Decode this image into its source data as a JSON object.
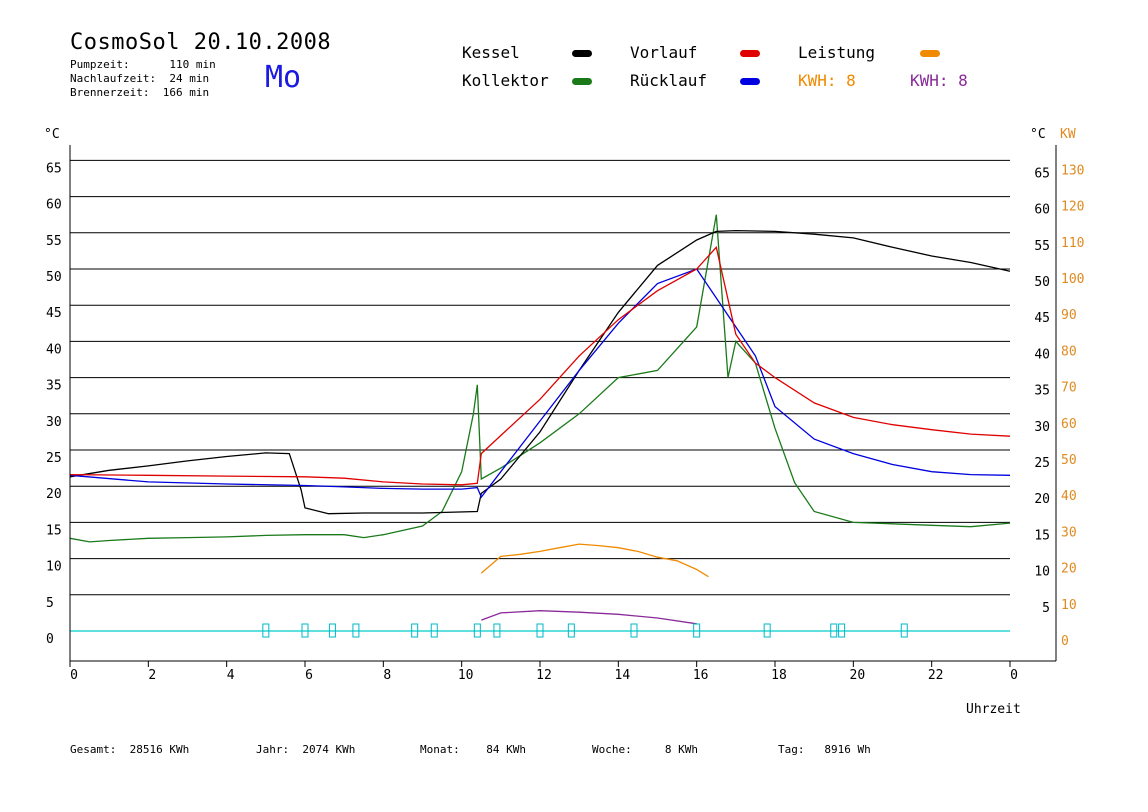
{
  "header": {
    "title": "CosmoSol 20.10.2008",
    "pumpzeit": "Pumpzeit:      110 min",
    "nachlaufzeit": "Nachlaufzeit:  24 min",
    "brennerzeit": "Brennerzeit:  166 min",
    "day": "Mo"
  },
  "legend": {
    "kessel": {
      "label": "Kessel",
      "color": "#000000"
    },
    "kollektor": {
      "label": "Kollektor",
      "color": "#1a7a1a"
    },
    "vorlauf": {
      "label": "Vorlauf",
      "color": "#e00000"
    },
    "ruecklauf": {
      "label": "Rücklauf",
      "color": "#0000e0"
    },
    "leistung": {
      "label": "Leistung",
      "color": "#f08a00"
    },
    "kwh1": "KWH: 8",
    "kwh2": "KWH: 8",
    "kwh1_color": "#f08a00",
    "kwh2_color": "#8a2a9a"
  },
  "footer": {
    "gesamt": "Gesamt:  28516 KWh",
    "jahr": "Jahr:  2074 KWh",
    "monat": "Monat:    84 KWh",
    "woche": "Woche:     8 KWh",
    "tag": "Tag:   8916 Wh"
  },
  "chart_data": {
    "type": "line",
    "title": "CosmoSol 20.10.2008",
    "xlabel": "Uhrzeit",
    "ylabel_left": "°C",
    "ylabel_right": "°C",
    "ylabel_right2": "KW",
    "xlim": [
      0,
      24
    ],
    "ylim": [
      0,
      65
    ],
    "x_ticks": [
      "0",
      "2",
      "4",
      "6",
      "8",
      "10",
      "12",
      "14",
      "16",
      "18",
      "20",
      "22",
      "0"
    ],
    "y_ticks_left": [
      "0",
      "5",
      "10",
      "15",
      "20",
      "25",
      "30",
      "35",
      "40",
      "45",
      "50",
      "55",
      "60",
      "65"
    ],
    "y_ticks_right": [
      "5",
      "10",
      "15",
      "20",
      "25",
      "30",
      "35",
      "40",
      "45",
      "50",
      "55",
      "60",
      "65"
    ],
    "y_ticks_kw": [
      "0",
      "10",
      "20",
      "30",
      "40",
      "50",
      "60",
      "70",
      "80",
      "90",
      "100",
      "110",
      "120",
      "130"
    ],
    "grid": true,
    "series": [
      {
        "name": "Kessel",
        "color": "#000000",
        "x": [
          0,
          1,
          2,
          3,
          4,
          5,
          5.6,
          5.9,
          6.0,
          6.6,
          7.5,
          9,
          10.4,
          10.5,
          11,
          12,
          13,
          14,
          15,
          16,
          16.5,
          17,
          18,
          19,
          20,
          21,
          22,
          23,
          24
        ],
        "y": [
          21.3,
          22.2,
          22.8,
          23.5,
          24.1,
          24.6,
          24.5,
          19.5,
          17,
          16.2,
          16.3,
          16.3,
          16.5,
          19,
          21,
          27.5,
          36,
          44,
          50.5,
          54,
          55.2,
          55.3,
          55.2,
          54.8,
          54.3,
          53,
          51.8,
          50.9,
          49.7
        ]
      },
      {
        "name": "Vorlauf",
        "color": "#e00000",
        "x": [
          0,
          2,
          4,
          6,
          7,
          8,
          9,
          10,
          10.4,
          10.5,
          11,
          12,
          13,
          14,
          15,
          16,
          16.5,
          17,
          17.5,
          18,
          19,
          20,
          21,
          22,
          23,
          24
        ],
        "y": [
          21.6,
          21.5,
          21.4,
          21.3,
          21.1,
          20.6,
          20.3,
          20.2,
          20.4,
          24.5,
          27,
          32,
          38,
          43,
          47,
          50,
          53,
          41,
          37,
          35,
          31.5,
          29.5,
          28.5,
          27.8,
          27.2,
          26.9
        ]
      },
      {
        "name": "Rücklauf",
        "color": "#0000e0",
        "x": [
          0,
          2,
          4,
          6,
          7,
          8,
          9,
          10,
          10.4,
          10.5,
          11,
          12,
          13,
          14,
          15,
          16,
          16.5,
          17,
          17.5,
          18,
          19,
          20,
          21,
          22,
          23,
          24
        ],
        "y": [
          21.5,
          20.6,
          20.3,
          20.1,
          19.9,
          19.7,
          19.6,
          19.6,
          19.8,
          18.5,
          22,
          29,
          36,
          42.5,
          48,
          50,
          46,
          42,
          38,
          31,
          26.5,
          24.5,
          23,
          22,
          21.6,
          21.5
        ]
      },
      {
        "name": "Kollektor",
        "color": "#1a7a1a",
        "x": [
          0,
          0.5,
          1,
          2,
          3,
          4,
          5,
          6,
          7,
          7.5,
          8,
          9,
          9.5,
          10,
          10.3,
          10.4,
          10.5,
          11,
          12,
          13,
          14,
          15,
          16,
          16.5,
          16.8,
          17,
          17.5,
          18,
          18.5,
          19,
          20,
          21,
          22,
          23,
          24
        ],
        "y": [
          12.8,
          12.3,
          12.5,
          12.8,
          12.9,
          13.0,
          13.2,
          13.3,
          13.3,
          12.9,
          13.3,
          14.5,
          16.5,
          22,
          30,
          34,
          21,
          22.5,
          26,
          30,
          35,
          36,
          42,
          57.5,
          35,
          40,
          37,
          28,
          20.5,
          16.5,
          15,
          14.8,
          14.6,
          14.4,
          14.9
        ]
      },
      {
        "name": "Leistung",
        "color": "#f08a00",
        "x": [
          10.5,
          11,
          11.5,
          12,
          12.5,
          13,
          13.5,
          14,
          14.5,
          15,
          15.5,
          16,
          16.3
        ],
        "y": [
          8,
          10.3,
          10.6,
          11,
          11.5,
          12,
          11.8,
          11.5,
          11,
          10.2,
          9.7,
          8.5,
          7.5
        ]
      },
      {
        "name": "KWH",
        "color": "#8a2a9a",
        "x": [
          10.5,
          11,
          12,
          13,
          14,
          15,
          16
        ],
        "y": [
          1.5,
          2.5,
          2.8,
          2.6,
          2.3,
          1.8,
          1.0
        ]
      }
    ],
    "pump_x": [
      5.0,
      6.0,
      6.7,
      7.3,
      8.8,
      9.3,
      10.4,
      10.9,
      12.0,
      12.8,
      14.4,
      16.0,
      17.8,
      19.5,
      19.7,
      21.3
    ]
  }
}
